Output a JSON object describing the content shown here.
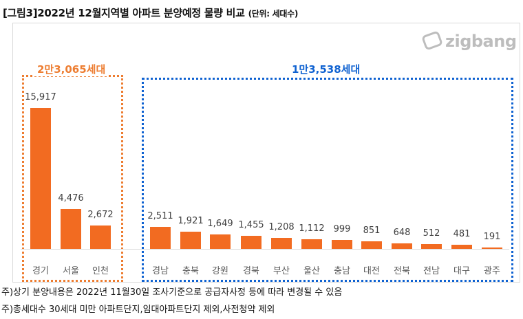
{
  "title": "[그림3]2022년 12월지역별 아파트 분양예정 물량 비교",
  "unit": "(단위: 세대수)",
  "logo": "zigbang",
  "groups": [
    {
      "label": "2만3,065세대",
      "color": "#ed7d31"
    },
    {
      "label": "1만3,538세대",
      "color": "#0f62d1"
    }
  ],
  "chart_data": {
    "type": "bar",
    "title": "[그림3]2022년 12월지역별 아파트 분양예정 물량 비교",
    "ylabel": "세대수",
    "categories": [
      "경기",
      "서울",
      "인천",
      "경남",
      "충북",
      "강원",
      "경북",
      "부산",
      "울산",
      "충남",
      "대전",
      "전북",
      "전남",
      "대구",
      "광주"
    ],
    "values": [
      15917,
      4476,
      2672,
      2511,
      1921,
      1649,
      1455,
      1208,
      1112,
      999,
      851,
      648,
      512,
      481,
      191
    ],
    "value_labels": [
      "15,917",
      "4,476",
      "2,672",
      "2,511",
      "1,921",
      "1,649",
      "1,455",
      "1,208",
      "1,112",
      "999",
      "851",
      "648",
      "512",
      "481",
      "191"
    ],
    "ylim": [
      0,
      16000
    ],
    "bar_color": "#f26b21"
  },
  "notes": [
    "주)상기 분양내용은 2022년 11월30일 조사기준으로 공급자사정 등에 따라 변경될 수 있음",
    "주)총세대수 30세대 미만 아파트단지,임대아파트단지 제외,사전청약 제외"
  ]
}
